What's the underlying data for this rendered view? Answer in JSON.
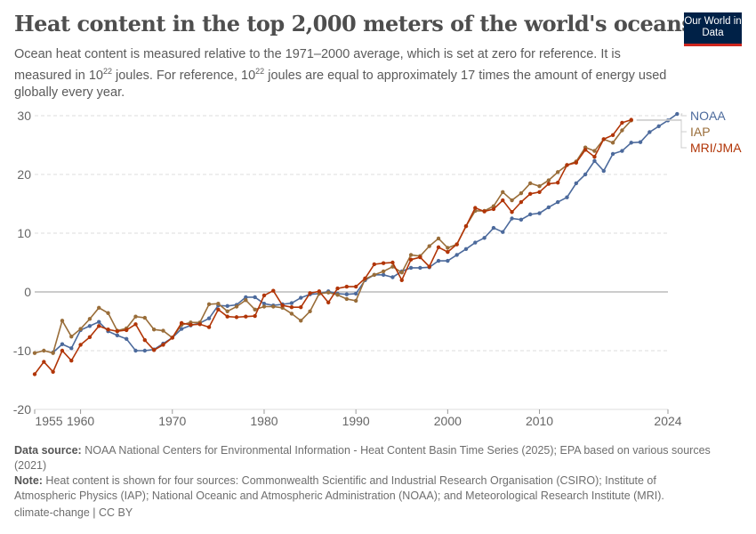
{
  "header": {
    "title": "Heat content in the top 2,000 meters of the world's oceans",
    "subtitle_1": "Ocean heat content is measured relative to the 1971–2000 average, which is set at zero for reference. It is measured in 10",
    "sup": "22",
    "subtitle_2": " joules. For reference, 10",
    "subtitle_3": " joules are equal to approximately 17 times the amount of energy used globally every year.",
    "logo": "Our World in Data"
  },
  "chart_data": {
    "type": "line",
    "xlim": [
      1955,
      2024
    ],
    "ylim": [
      -20,
      30
    ],
    "yticks": [
      -20,
      -10,
      0,
      10,
      20,
      30
    ],
    "xticks": [
      1955,
      1960,
      1970,
      1980,
      1990,
      2000,
      2010,
      2024
    ],
    "legend_position": "right",
    "grid": true,
    "series": [
      {
        "name": "NOAA",
        "color": "#4c6a9c",
        "start": 1957,
        "values": [
          -10.3,
          -8.9,
          -9.6,
          -6.5,
          -5.8,
          -5.1,
          -6.7,
          -7.4,
          -8,
          -10,
          -10,
          -9.8,
          -8.8,
          -7.8,
          -6.3,
          -5.7,
          -5.3,
          -4.5,
          -2.3,
          -2.4,
          -2.2,
          -0.9,
          -0.9,
          -2,
          -2.3,
          -2.1,
          -1.9,
          -1,
          -0.4,
          -0.3,
          0.1,
          -0.3,
          -0.4,
          -0.3,
          2,
          2.9,
          2.9,
          2.5,
          3.5,
          4.1,
          4.1,
          4.2,
          5.3,
          5.3,
          6.3,
          7.3,
          8.4,
          9.2,
          10.9,
          10.2,
          12.5,
          12.3,
          13.2,
          13.4,
          14.4,
          15.3,
          16.1,
          18.5,
          20,
          22.3,
          20.6,
          23.5,
          24,
          25.4,
          25.5,
          27.2,
          28.2,
          29.2,
          30.3
        ]
      },
      {
        "name": "IAP",
        "color": "#996d39",
        "start": 1955,
        "values": [
          -10.4,
          -10,
          -10.4,
          -4.9,
          -7.6,
          -6.3,
          -4.6,
          -2.7,
          -3.6,
          -6.6,
          -6.2,
          -4.2,
          -4.4,
          -6.4,
          -6.6,
          -7.8,
          -5.6,
          -5.2,
          -5.2,
          -2.1,
          -2,
          -3.3,
          -2.5,
          -1.4,
          -3,
          -2.5,
          -2.5,
          -2.7,
          -3.7,
          -4.9,
          -3.3,
          -0.3,
          -0.1,
          -0.5,
          -1.2,
          -1.5,
          2.2,
          2.9,
          3.5,
          4.3,
          3.3,
          6.3,
          6.1,
          7.8,
          9.1,
          7.5,
          8.1,
          11.2,
          13.8,
          13.8,
          14.6,
          17,
          15.6,
          16.8,
          18.5,
          18,
          19,
          20.4,
          21.6,
          22.2,
          24.6,
          24,
          26,
          25.4,
          27.5,
          29.2
        ]
      },
      {
        "name": "MRI/JMA",
        "color": "#b13507",
        "start": 1955,
        "values": [
          -14,
          -11.9,
          -13.6,
          -10,
          -11.7,
          -9,
          -7.7,
          -5.8,
          -6.4,
          -6.7,
          -6.5,
          -5.5,
          -8.2,
          -9.9,
          -9,
          -7.8,
          -5.3,
          -5.6,
          -5.5,
          -6,
          -3,
          -4.2,
          -4.3,
          -4.2,
          -4.1,
          -0.6,
          0.2,
          -2.3,
          -2.6,
          -2.6,
          -0.2,
          0.1,
          -1.8,
          0.6,
          0.9,
          0.9,
          2.3,
          4.7,
          4.9,
          5,
          2,
          5.5,
          5.9,
          4.3,
          7.6,
          6.8,
          8.1,
          11.2,
          14.3,
          13.7,
          14.1,
          15.6,
          13.6,
          15.3,
          16.7,
          17,
          18.4,
          18.6,
          21.6,
          22,
          24.2,
          23,
          26,
          26.7,
          28.8,
          29.3
        ]
      }
    ]
  },
  "footer": {
    "source_label": "Data source:",
    "source": " NOAA National Centers for Environmental Information - Heat Content Basin Time Series (2025); EPA based on various sources (2021)",
    "note_label": "Note:",
    "note": " Heat content is shown for four sources: Commonwealth Scientific and Industrial Research Organisation (CSIRO); Institute of Atmospheric Physics (IAP); National Oceanic and Atmospheric Administration (NOAA); and Meteorological Research Institute (MRI).",
    "license": "climate-change | CC BY"
  }
}
